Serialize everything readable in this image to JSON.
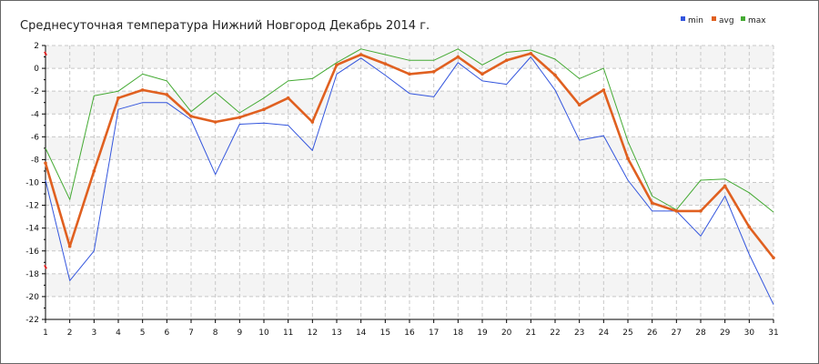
{
  "chart_data": {
    "type": "line",
    "title": "Среднесуточная температура Нижний Новгород  Декабрь 2014 г.",
    "xlabel": "",
    "ylabel": "",
    "x": [
      1,
      2,
      3,
      4,
      5,
      6,
      7,
      8,
      9,
      10,
      11,
      12,
      13,
      14,
      15,
      16,
      17,
      18,
      19,
      20,
      21,
      22,
      23,
      24,
      25,
      26,
      27,
      28,
      29,
      30,
      31
    ],
    "ylim": [
      -22,
      2
    ],
    "yticks": [
      2,
      0,
      -2,
      -4,
      -6,
      -8,
      -10,
      -12,
      -14,
      -16,
      -18,
      -20,
      -22
    ],
    "grid": true,
    "legend_position": "top-right",
    "series": [
      {
        "name": "min",
        "color": "#3355dd",
        "values": [
          -9.8,
          -18.6,
          -16.0,
          -3.6,
          -3.0,
          -3.0,
          -4.5,
          -9.3,
          -4.9,
          -4.8,
          -5.0,
          -7.2,
          -0.5,
          0.9,
          -0.6,
          -2.2,
          -2.5,
          0.5,
          -1.1,
          -1.4,
          1.0,
          -1.9,
          -6.3,
          -5.9,
          -9.8,
          -12.5,
          -12.5,
          -14.7,
          -11.2,
          -16.3,
          -20.7
        ]
      },
      {
        "name": "avg",
        "color": "#e06020",
        "values": [
          -8.3,
          -15.6,
          -9.0,
          -2.6,
          -1.9,
          -2.3,
          -4.2,
          -4.7,
          -4.3,
          -3.6,
          -2.6,
          -4.7,
          0.3,
          1.2,
          0.4,
          -0.5,
          -0.3,
          1.0,
          -0.5,
          0.7,
          1.3,
          -0.6,
          -3.2,
          -1.9,
          -7.9,
          -11.8,
          -12.5,
          -12.5,
          -10.3,
          -13.9,
          -16.6
        ]
      },
      {
        "name": "max",
        "color": "#44aa33",
        "values": [
          -7.0,
          -11.5,
          -2.4,
          -2.0,
          -0.5,
          -1.1,
          -3.8,
          -2.1,
          -3.9,
          -2.6,
          -1.1,
          -0.9,
          0.5,
          1.7,
          1.2,
          0.7,
          0.7,
          1.7,
          0.3,
          1.4,
          1.6,
          0.8,
          -0.9,
          0.0,
          -6.4,
          -11.2,
          -12.4,
          -9.8,
          -9.7,
          -10.9,
          -12.6
        ]
      }
    ]
  }
}
